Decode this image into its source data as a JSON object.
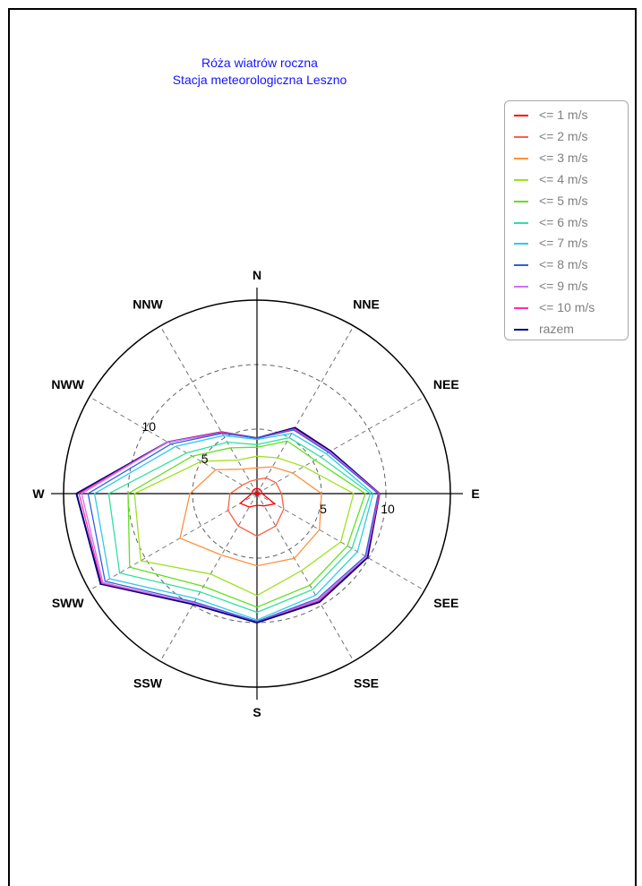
{
  "chart_data": {
    "type": "radar",
    "title_lines": [
      "Róża wiatrów roczna",
      "Stacja meteorologiczna Leszno"
    ],
    "directions": [
      "N",
      "NNE",
      "NEE",
      "E",
      "SEE",
      "SSE",
      "S",
      "SSW",
      "SWW",
      "W",
      "NWW",
      "NNW"
    ],
    "rlim": [
      0,
      15
    ],
    "ticks": [
      5,
      10
    ],
    "grid": true,
    "legend_position": "top-right",
    "series": [
      {
        "name": "<= 1 m/s",
        "color": "#ff0000",
        "values": [
          0.4,
          0.4,
          0.4,
          0.4,
          1.6,
          1.1,
          0.9,
          1.2,
          1.5,
          0.4,
          0.4,
          0.4
        ]
      },
      {
        "name": "<= 2 m/s",
        "color": "#ff6040",
        "values": [
          1.1,
          1.4,
          1.7,
          1.9,
          2.4,
          2.9,
          3.3,
          2.9,
          2.6,
          2.1,
          1.3,
          1.1
        ]
      },
      {
        "name": "<= 3 m/s",
        "color": "#ff9040",
        "values": [
          2.0,
          2.4,
          3.2,
          5.0,
          5.6,
          5.8,
          5.6,
          5.5,
          6.9,
          5.2,
          3.7,
          2.2
        ]
      },
      {
        "name": "<= 4 m/s",
        "color": "#a0e020",
        "values": [
          2.9,
          3.2,
          4.2,
          7.5,
          7.5,
          6.9,
          7.9,
          7.2,
          10.4,
          9.5,
          5.0,
          3.0
        ]
      },
      {
        "name": "<= 5 m/s",
        "color": "#60e020",
        "values": [
          3.6,
          4.7,
          5.2,
          8.4,
          8.1,
          8.2,
          8.8,
          8.3,
          11.4,
          10.0,
          5.8,
          4.1
        ]
      },
      {
        "name": "<= 6 m/s",
        "color": "#30e0a0",
        "values": [
          3.8,
          5.0,
          5.7,
          8.8,
          8.5,
          8.6,
          9.2,
          8.8,
          12.3,
          11.5,
          6.3,
          4.6
        ]
      },
      {
        "name": "<= 7 m/s",
        "color": "#30c8f0",
        "values": [
          4.2,
          5.4,
          6.2,
          9.0,
          9.0,
          9.1,
          9.8,
          9.4,
          13.2,
          12.6,
          7.3,
          5.2
        ]
      },
      {
        "name": "<= 8 m/s",
        "color": "#3060e0",
        "values": [
          4.3,
          5.7,
          6.4,
          9.4,
          9.7,
          9.4,
          9.9,
          9.7,
          13.6,
          13.1,
          7.7,
          5.4
        ]
      },
      {
        "name": "<= 9 m/s",
        "color": "#d070f0",
        "values": [
          4.3,
          5.7,
          6.5,
          9.4,
          9.8,
          9.5,
          9.9,
          9.8,
          13.8,
          13.6,
          8.0,
          5.4
        ]
      },
      {
        "name": "<= 10 m/s",
        "color": "#ff30a0",
        "values": [
          4.3,
          5.8,
          6.5,
          9.5,
          9.8,
          9.6,
          9.9,
          9.8,
          13.9,
          13.8,
          8.0,
          5.5
        ]
      },
      {
        "name": "razem",
        "color": "#000080",
        "values": [
          4.3,
          5.9,
          6.6,
          9.5,
          9.9,
          9.7,
          10.0,
          9.9,
          14.0,
          14.0,
          8.0,
          5.5
        ]
      }
    ]
  }
}
